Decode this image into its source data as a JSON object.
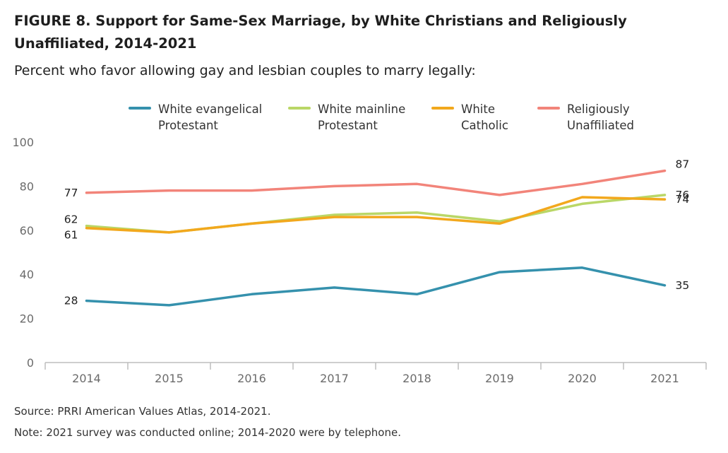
{
  "header": {
    "title": "FIGURE 8.  Support for Same-Sex Marriage, by White Christians and Religiously Unaffiliated, 2014-2021",
    "subtitle": "Percent who favor allowing gay and lesbian couples to marry legally:"
  },
  "footer": {
    "source": "Source: PRRI American Values Atlas, 2014-2021.",
    "note": "Note: 2021 survey was conducted online; 2014-2020 were by telephone."
  },
  "chart_data": {
    "type": "line",
    "title": "FIGURE 8.  Support for Same-Sex Marriage, by White Christians and Religiously Unaffiliated, 2014-2021",
    "subtitle": "Percent who favor allowing gay and lesbian couples to marry legally:",
    "xlabel": "",
    "ylabel": "",
    "x": [
      "2014",
      "2015",
      "2016",
      "2017",
      "2018",
      "2019",
      "2020",
      "2021"
    ],
    "ylim": [
      0,
      100
    ],
    "yticks": [
      "0",
      "20",
      "40",
      "60",
      "80",
      "100"
    ],
    "grid": false,
    "legend_position": "top",
    "series": [
      {
        "name": "White evangelical Protestant",
        "legend_lines": [
          "White evangelical",
          "Protestant"
        ],
        "color": "#3591ad",
        "values": [
          28,
          26,
          31,
          34,
          31,
          41,
          43,
          35
        ],
        "labels": [
          {
            "index": 0,
            "text": "28",
            "side": "left"
          },
          {
            "index": 7,
            "text": "35",
            "side": "right"
          }
        ]
      },
      {
        "name": "White mainline Protestant",
        "legend_lines": [
          "White mainline",
          "Protestant"
        ],
        "color": "#bad767",
        "values": [
          62,
          59,
          63,
          67,
          68,
          64,
          72,
          76
        ],
        "labels": [
          {
            "index": 0,
            "text": "62",
            "side": "left-above"
          },
          {
            "index": 7,
            "text": "76",
            "side": "right"
          }
        ]
      },
      {
        "name": "White Catholic",
        "legend_lines": [
          "White",
          "Catholic"
        ],
        "color": "#f2a81d",
        "values": [
          61,
          59,
          63,
          66,
          66,
          63,
          75,
          74
        ],
        "labels": [
          {
            "index": 0,
            "text": "61",
            "side": "left-below"
          },
          {
            "index": 7,
            "text": "74",
            "side": "right"
          }
        ]
      },
      {
        "name": "Religiously Unaffiliated",
        "legend_lines": [
          "Religiously",
          "Unaffiliated"
        ],
        "color": "#f2847a",
        "values": [
          77,
          78,
          78,
          80,
          81,
          76,
          81,
          87
        ],
        "labels": [
          {
            "index": 0,
            "text": "77",
            "side": "left"
          },
          {
            "index": 7,
            "text": "87",
            "side": "right-above"
          }
        ]
      }
    ]
  }
}
